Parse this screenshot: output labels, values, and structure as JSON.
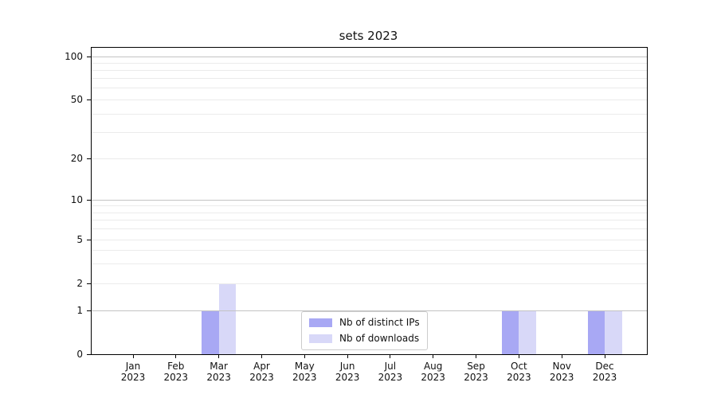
{
  "chart_data": {
    "type": "bar",
    "title": "sets 2023",
    "categories": [
      "Jan 2023",
      "Feb 2023",
      "Mar 2023",
      "Apr 2023",
      "May 2023",
      "Jun 2023",
      "Jul 2023",
      "Aug 2023",
      "Sep 2023",
      "Oct 2023",
      "Nov 2023",
      "Dec 2023"
    ],
    "x_tick_month": [
      "Jan",
      "Feb",
      "Mar",
      "Apr",
      "May",
      "Jun",
      "Jul",
      "Aug",
      "Sep",
      "Oct",
      "Nov",
      "Dec"
    ],
    "x_tick_year": "2023",
    "series": [
      {
        "name": "Nb of distinct IPs",
        "color": "#a8a8f4",
        "values": [
          0,
          0,
          1,
          0,
          0,
          0,
          0,
          0,
          0,
          1,
          0,
          1
        ]
      },
      {
        "name": "Nb of downloads",
        "color": "#d8d8f8",
        "values": [
          0,
          0,
          2,
          0,
          0,
          0,
          0,
          0,
          0,
          1,
          0,
          1
        ]
      }
    ],
    "yscale": "symlog",
    "ylim": [
      0,
      100
    ],
    "y_major_ticks": [
      0,
      1,
      2,
      5,
      10,
      20,
      50,
      100
    ],
    "y_gridlines_major": [
      1,
      10,
      100
    ],
    "y_gridlines_minor": [
      2,
      3,
      4,
      5,
      6,
      7,
      8,
      9,
      20,
      30,
      40,
      50,
      60,
      70,
      80,
      90
    ],
    "grid": true,
    "legend_position": "lower center",
    "colors": {
      "major_grid": "#c3c3c3",
      "minor_grid": "#ebebeb",
      "spine": "#000000",
      "text": "#111111"
    }
  }
}
